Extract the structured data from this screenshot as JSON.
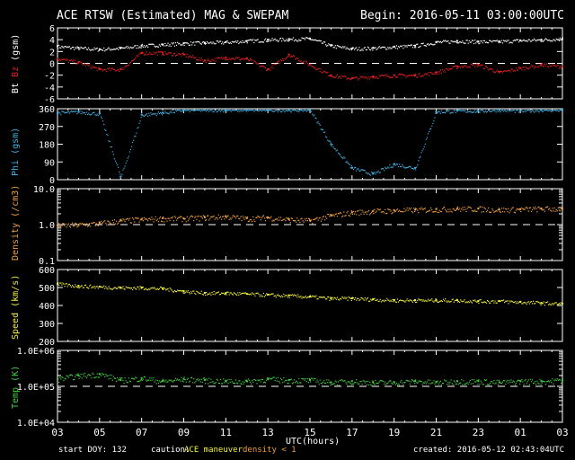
{
  "header": {
    "title": "ACE RTSW (Estimated) MAG & SWEPAM",
    "begin": "Begin: 2016-05-11 03:00:00UTC"
  },
  "footer": {
    "start_doy": "start DOY: 132",
    "caution": "caution:",
    "maneuver": "ACE maneuver",
    "density_note": "density < 1",
    "created": "created: 2016-05-12 02:43:04UTC"
  },
  "colors": {
    "bt": "#ffffff",
    "bz": "#e02020",
    "phi": "#40b0e0",
    "density": "#f0a040",
    "speed": "#f0f040",
    "temp": "#40d040"
  },
  "chart_data": {
    "type": "scatter",
    "xlabel": "UTC(hours)",
    "x_hours_from_start": [
      0,
      1,
      2,
      3,
      4,
      5,
      6,
      7,
      8,
      9,
      10,
      11,
      12,
      13,
      14,
      15,
      16,
      17,
      18,
      19,
      20,
      21,
      22,
      23,
      24
    ],
    "xtick_labels": [
      "03",
      "05",
      "07",
      "09",
      "11",
      "13",
      "15",
      "17",
      "19",
      "21",
      "23",
      "01",
      "03"
    ],
    "panels": [
      {
        "name": "mag",
        "ylabel_parts": [
          "Bt",
          "Bz",
          "(gsm)"
        ],
        "ylim": [
          -6,
          6
        ],
        "yticks": [
          "6",
          "4",
          "2",
          "0",
          "-2",
          "-4",
          "-6"
        ],
        "ref": 0,
        "series": [
          {
            "name": "Bt",
            "color_key": "bt",
            "values": [
              2.9,
              2.6,
              2.4,
              2.6,
              3.0,
              3.2,
              3.4,
              3.5,
              3.6,
              3.8,
              4.0,
              4.1,
              4.2,
              3.0,
              2.5,
              2.6,
              2.8,
              3.0,
              3.6,
              3.8,
              3.7,
              3.7,
              3.9,
              4.0,
              4.2
            ]
          },
          {
            "name": "Bz",
            "color_key": "bz",
            "values": [
              0.8,
              0.2,
              -1.0,
              -1.0,
              1.8,
              1.8,
              1.5,
              0.5,
              1.0,
              0.8,
              -1.0,
              1.5,
              -0.2,
              -2.0,
              -2.5,
              -2.2,
              -2.0,
              -2.0,
              -1.5,
              -0.5,
              -0.2,
              -1.5,
              -0.8,
              -0.2,
              -0.5
            ]
          }
        ]
      },
      {
        "name": "phi",
        "ylabel": "Phi (gsm)",
        "ylim": [
          0,
          360
        ],
        "yticks": [
          "360",
          "270",
          "180",
          "90",
          "0"
        ],
        "series": [
          {
            "name": "Phi",
            "color_key": "phi",
            "values": [
              340,
              345,
              335,
              15,
              330,
              340,
              355,
              355,
              355,
              355,
              355,
              355,
              355,
              180,
              60,
              30,
              80,
              60,
              345,
              350,
              350,
              355,
              350,
              355,
              355
            ]
          }
        ]
      },
      {
        "name": "density",
        "ylabel": "Density (/cm3)",
        "log": true,
        "ylim": [
          0.1,
          10
        ],
        "yticks": [
          "10.0",
          "1.0",
          "0.1"
        ],
        "ref": 1,
        "series": [
          {
            "name": "Density",
            "color_key": "density",
            "values": [
              0.95,
              1.0,
              1.1,
              1.3,
              1.4,
              1.5,
              1.5,
              1.6,
              1.7,
              1.5,
              1.6,
              1.4,
              1.3,
              1.8,
              2.2,
              2.4,
              2.5,
              2.6,
              2.7,
              2.8,
              2.8,
              2.6,
              2.7,
              2.8,
              2.8
            ]
          }
        ]
      },
      {
        "name": "speed",
        "ylabel": "Speed (km/s)",
        "ylim": [
          200,
          600
        ],
        "yticks": [
          "600",
          "500",
          "400",
          "300",
          "200"
        ],
        "series": [
          {
            "name": "Speed",
            "color_key": "speed",
            "values": [
              520,
              510,
              505,
              500,
              500,
              495,
              480,
              470,
              470,
              465,
              460,
              455,
              450,
              440,
              440,
              435,
              430,
              430,
              430,
              430,
              425,
              425,
              420,
              415,
              410
            ]
          }
        ]
      },
      {
        "name": "temp",
        "ylabel": "Temp (K)",
        "log": true,
        "ylim": [
          10000,
          1000000
        ],
        "yticks": [
          "1.0E+06",
          "1.0E+05",
          "1.0E+04"
        ],
        "ref": 100000,
        "series": [
          {
            "name": "Temp",
            "color_key": "temp",
            "values": [
              160000,
              200000,
              220000,
              150000,
              170000,
              140000,
              160000,
              150000,
              140000,
              140000,
              160000,
              150000,
              150000,
              130000,
              140000,
              130000,
              130000,
              140000,
              130000,
              140000,
              140000,
              130000,
              140000,
              140000,
              150000
            ]
          }
        ]
      }
    ]
  }
}
